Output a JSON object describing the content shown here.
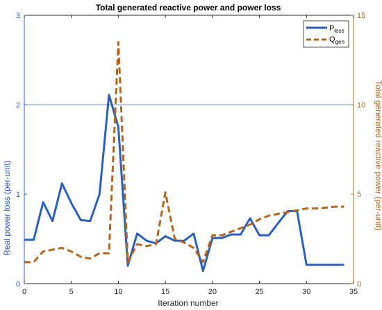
{
  "chart_data": {
    "type": "line",
    "title": "Total generated reactive power and power loss",
    "xlabel": "Iteration number",
    "ylabel_left": "Real power loss (per-unit)",
    "ylabel_right": "Total generated reactive power (per-unit)",
    "xlim": [
      0,
      35
    ],
    "ylim_left": [
      0,
      3
    ],
    "ylim_right": [
      0,
      15
    ],
    "xticks": [
      "0",
      "5",
      "10",
      "15",
      "20",
      "25",
      "30",
      "35"
    ],
    "yticks_left": [
      "0",
      "1",
      "2",
      "3"
    ],
    "yticks_right": [
      "0",
      "5",
      "10",
      "15"
    ],
    "grid": false,
    "legend_position": "top-right",
    "series": [
      {
        "name": "P",
        "name_subscript": "loss",
        "axis": "left",
        "style": "solid",
        "color": "#2a5fc0",
        "x": [
          0,
          1,
          2,
          3,
          4,
          5,
          6,
          7,
          8,
          9,
          10,
          11,
          12,
          13,
          14,
          15,
          16,
          17,
          18,
          19,
          20,
          21,
          22,
          23,
          24,
          25,
          26,
          27,
          28,
          29,
          30,
          31,
          32,
          33,
          34
        ],
        "y": [
          0.49,
          0.49,
          0.91,
          0.7,
          1.12,
          0.9,
          0.71,
          0.7,
          1.0,
          2.11,
          1.75,
          0.2,
          0.56,
          0.48,
          0.45,
          0.53,
          0.48,
          0.48,
          0.56,
          0.14,
          0.51,
          0.51,
          0.55,
          0.55,
          0.73,
          0.54,
          0.54,
          0.68,
          0.81,
          0.81,
          0.21,
          0.21,
          0.21,
          0.21,
          0.21
        ]
      },
      {
        "name": "Q",
        "name_subscript": "gen",
        "axis": "right",
        "style": "dashed",
        "color": "#b5651d",
        "x": [
          0,
          1,
          2,
          3,
          4,
          5,
          6,
          7,
          8,
          9,
          10,
          11,
          12,
          13,
          14,
          15,
          16,
          17,
          18,
          19,
          20,
          21,
          22,
          23,
          24,
          25,
          26,
          27,
          28,
          29,
          30,
          31,
          32,
          33,
          34
        ],
        "y": [
          1.2,
          1.2,
          1.8,
          1.9,
          2.0,
          1.8,
          1.5,
          1.4,
          1.7,
          1.7,
          13.5,
          1.2,
          2.2,
          2.1,
          2.2,
          5.1,
          2.5,
          2.3,
          2.0,
          1.2,
          2.7,
          2.7,
          2.9,
          3.1,
          3.3,
          3.6,
          3.8,
          3.9,
          4.0,
          4.1,
          4.2,
          4.2,
          4.25,
          4.3,
          4.3
        ]
      }
    ]
  }
}
